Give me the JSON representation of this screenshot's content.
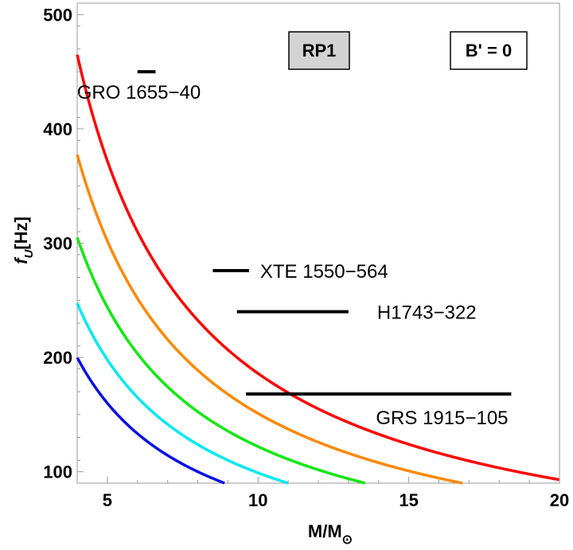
{
  "chart_data": {
    "type": "line",
    "xlabel": "M/M",
    "xlabel_sub": "⊙",
    "ylabel": "f",
    "ylabel_sub": "U",
    "ylabel_unit": "[Hz]",
    "xlim": [
      4,
      20
    ],
    "ylim": [
      90,
      510
    ],
    "x_ticks": [
      5,
      10,
      15,
      20
    ],
    "y_ticks": [
      100,
      200,
      300,
      400,
      500
    ],
    "badges": [
      {
        "text": "RP1",
        "fill": "#d3d3d3"
      },
      {
        "text": "B' = 0",
        "fill": "#ffffff"
      }
    ],
    "series": [
      {
        "name": "curve-blue",
        "color": "#0a10e0",
        "k": 800
      },
      {
        "name": "curve-cyan",
        "color": "#00e8f0",
        "k": 990
      },
      {
        "name": "curve-green",
        "color": "#10e810",
        "k": 1220
      },
      {
        "name": "curve-orange",
        "color": "#ff8800",
        "k": 1510
      },
      {
        "name": "curve-red",
        "color": "#ff0000",
        "k": 1860
      }
    ],
    "observations": [
      {
        "name": "GRO 1655-40",
        "label": "GRO 1655−40",
        "x_range": [
          6.0,
          6.6
        ],
        "y": 450
      },
      {
        "name": "XTE 1550-564",
        "label": "XTE 1550−564",
        "x_range": [
          8.5,
          9.7
        ],
        "y": 276
      },
      {
        "name": "H1743-322",
        "label": "H1743−322",
        "x_range": [
          9.3,
          13.0
        ],
        "y": 240
      },
      {
        "name": "GRS 1915-105",
        "label": "GRS 1915−105",
        "x_range": [
          9.6,
          18.4
        ],
        "y": 168
      }
    ]
  }
}
